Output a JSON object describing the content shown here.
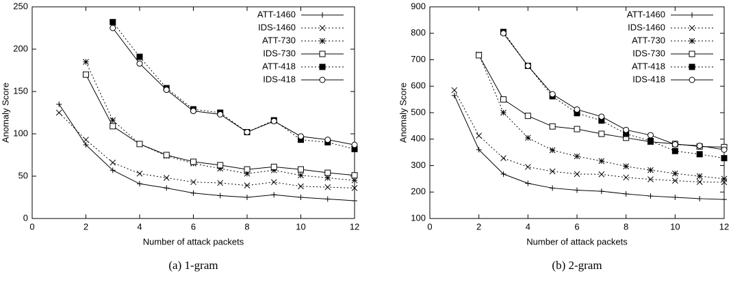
{
  "chart_data": [
    {
      "type": "line",
      "caption": "(a) 1-gram",
      "xlabel": "Number of attack packets",
      "ylabel": "Anomaly Score",
      "x": [
        1,
        2,
        3,
        4,
        5,
        6,
        7,
        8,
        9,
        10,
        11,
        12
      ],
      "xlim": [
        0,
        12
      ],
      "xticks": [
        0,
        2,
        4,
        6,
        8,
        10,
        12
      ],
      "ylim": [
        0,
        250
      ],
      "yticks": [
        0,
        50,
        100,
        150,
        200,
        250
      ],
      "legend": "upper right",
      "series": [
        {
          "name": "ATT-1460",
          "color": "#000000",
          "marker": "plus",
          "dashed": false,
          "values": [
            135,
            87,
            57,
            41,
            36,
            30,
            27,
            25,
            28,
            25,
            23,
            21
          ]
        },
        {
          "name": "IDS-1460",
          "color": "#000000",
          "marker": "x",
          "dashed": true,
          "values": [
            125,
            93,
            66,
            53,
            48,
            43,
            42,
            39,
            43,
            38,
            37,
            36
          ]
        },
        {
          "name": "ATT-730",
          "color": "#000000",
          "marker": "star",
          "dashed": true,
          "values": [
            null,
            185,
            116,
            88,
            74,
            65,
            59,
            53,
            57,
            51,
            48,
            45
          ]
        },
        {
          "name": "IDS-730",
          "color": "#000000",
          "marker": "square",
          "dashed": false,
          "values": [
            null,
            170,
            109,
            88,
            75,
            67,
            63,
            58,
            61,
            58,
            54,
            51
          ]
        },
        {
          "name": "ATT-418",
          "color": "#000000",
          "marker": "filled-square",
          "dashed": true,
          "values": [
            null,
            null,
            232,
            191,
            154,
            129,
            125,
            102,
            116,
            93,
            90,
            82
          ]
        },
        {
          "name": "IDS-418",
          "color": "#000000",
          "marker": "circle",
          "dashed": false,
          "values": [
            null,
            null,
            225,
            183,
            152,
            127,
            123,
            102,
            115,
            97,
            93,
            87
          ]
        }
      ]
    },
    {
      "type": "line",
      "caption": "(b) 2-gram",
      "xlabel": "Number of attack packets",
      "ylabel": "Anomaly Score",
      "x": [
        1,
        2,
        3,
        4,
        5,
        6,
        7,
        8,
        9,
        10,
        11,
        12
      ],
      "xlim": [
        0,
        12
      ],
      "xticks": [
        0,
        2,
        4,
        6,
        8,
        10,
        12
      ],
      "ylim": [
        100,
        900
      ],
      "yticks": [
        100,
        200,
        300,
        400,
        500,
        600,
        700,
        800,
        900
      ],
      "legend": "upper right",
      "series": [
        {
          "name": "ATT-1460",
          "color": "#000000",
          "marker": "plus",
          "dashed": false,
          "values": [
            565,
            360,
            268,
            233,
            215,
            207,
            203,
            193,
            185,
            180,
            175,
            172
          ]
        },
        {
          "name": "IDS-1460",
          "color": "#000000",
          "marker": "x",
          "dashed": true,
          "values": [
            585,
            413,
            328,
            295,
            278,
            268,
            267,
            255,
            248,
            243,
            238,
            237
          ]
        },
        {
          "name": "ATT-730",
          "color": "#000000",
          "marker": "star",
          "dashed": true,
          "values": [
            null,
            720,
            500,
            405,
            358,
            335,
            317,
            297,
            283,
            270,
            260,
            250
          ]
        },
        {
          "name": "IDS-730",
          "color": "#000000",
          "marker": "square",
          "dashed": false,
          "values": [
            null,
            717,
            550,
            488,
            448,
            438,
            420,
            405,
            390,
            382,
            372,
            370
          ]
        },
        {
          "name": "ATT-418",
          "color": "#000000",
          "marker": "filled-square",
          "dashed": true,
          "values": [
            null,
            null,
            805,
            677,
            562,
            498,
            470,
            420,
            393,
            355,
            343,
            328
          ]
        },
        {
          "name": "IDS-418",
          "color": "#000000",
          "marker": "circle",
          "dashed": false,
          "values": [
            null,
            null,
            800,
            677,
            570,
            512,
            485,
            435,
            415,
            380,
            375,
            360
          ]
        }
      ]
    }
  ]
}
